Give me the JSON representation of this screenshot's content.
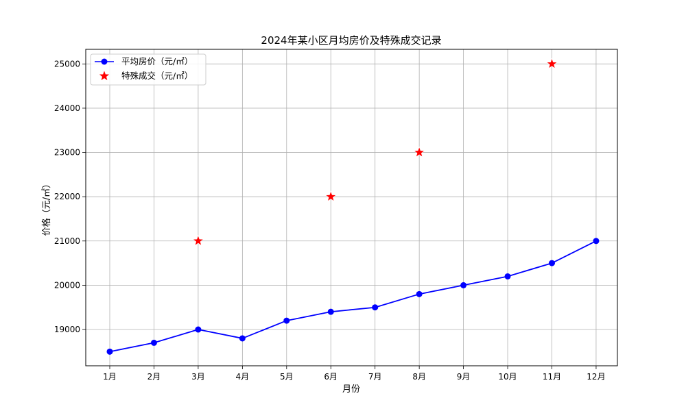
{
  "chart_data": {
    "type": "line",
    "title": "2024年某小区月均房价及特殊成交记录",
    "xlabel": "月份",
    "ylabel": "价格（元/㎡）",
    "categories": [
      "1月",
      "2月",
      "3月",
      "4月",
      "5月",
      "6月",
      "7月",
      "8月",
      "9月",
      "10月",
      "11月",
      "12月"
    ],
    "ylim": [
      18180,
      25330
    ],
    "yticks": [
      19000,
      20000,
      21000,
      22000,
      23000,
      24000,
      25000
    ],
    "grid": true,
    "legend_position": "top-left",
    "series": [
      {
        "name": "平均房价（元/㎡）",
        "type": "line",
        "marker": "circle",
        "color": "#0000ff",
        "values": [
          18500,
          18700,
          19000,
          18800,
          19200,
          19400,
          19500,
          19800,
          20000,
          20200,
          20500,
          21000
        ]
      },
      {
        "name": "特殊成交（元/㎡）",
        "type": "scatter",
        "marker": "star",
        "color": "#ff0000",
        "points": [
          {
            "x": "3月",
            "y": 21000
          },
          {
            "x": "6月",
            "y": 22000
          },
          {
            "x": "8月",
            "y": 23000
          },
          {
            "x": "11月",
            "y": 25000
          }
        ]
      }
    ]
  }
}
